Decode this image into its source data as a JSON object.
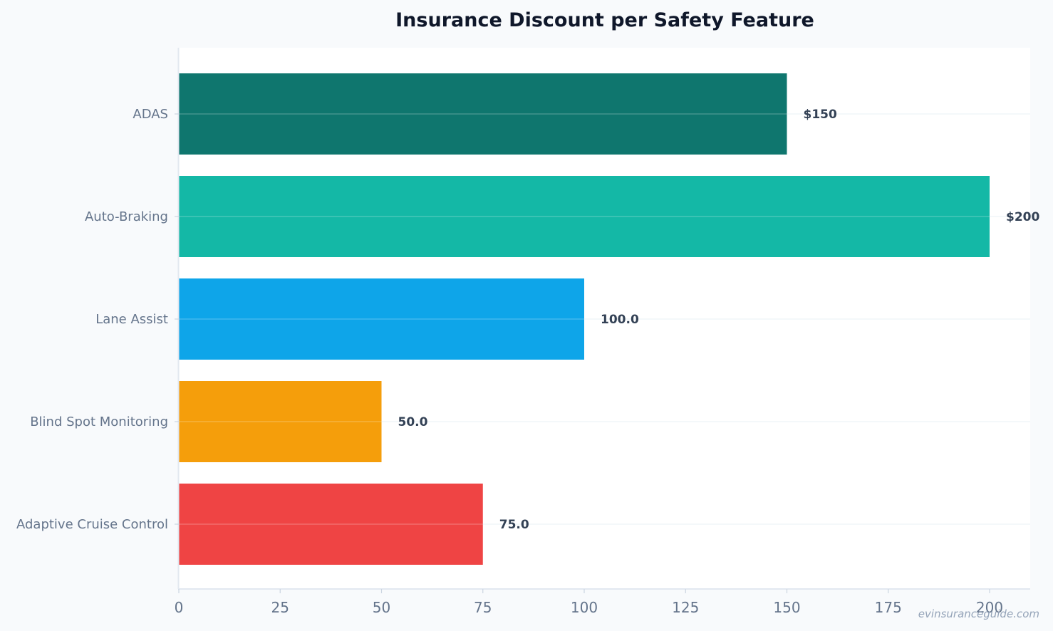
{
  "chart_data": {
    "type": "bar",
    "orientation": "horizontal",
    "title": "Insurance Discount per Safety Feature",
    "xlabel": "",
    "ylabel": "",
    "categories": [
      "ADAS",
      "Auto-Braking",
      "Lane Assist",
      "Blind Spot Monitoring",
      "Adaptive Cruise Control"
    ],
    "values": [
      150,
      200,
      100,
      50,
      75
    ],
    "value_labels": [
      "$150",
      "$200",
      "100.0",
      "50.0",
      "75.0"
    ],
    "colors": [
      "#0f766e",
      "#14b8a6",
      "#0ea5e9",
      "#f59e0b",
      "#ef4444"
    ],
    "xlim": [
      0,
      210
    ],
    "xticks": [
      0,
      25,
      50,
      75,
      100,
      125,
      150,
      175,
      200
    ],
    "grid": true,
    "legend": "none"
  },
  "watermark": "evinsuranceguide.com"
}
